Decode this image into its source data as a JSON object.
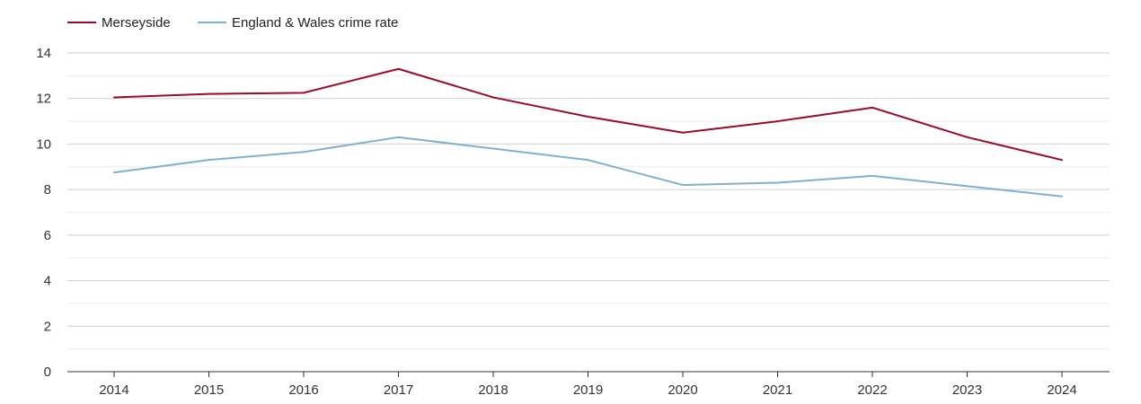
{
  "chart_data": {
    "type": "line",
    "title": "",
    "xlabel": "",
    "ylabel": "",
    "categories": [
      "2014",
      "2015",
      "2016",
      "2017",
      "2018",
      "2019",
      "2020",
      "2021",
      "2022",
      "2023",
      "2024"
    ],
    "ylim": [
      0,
      14
    ],
    "yticks": [
      0,
      2,
      4,
      6,
      8,
      10,
      12,
      14
    ],
    "grid": true,
    "legend_position": "top-left",
    "series": [
      {
        "name": "Merseyside",
        "color": "#9b0a2d",
        "values": [
          12.05,
          12.2,
          12.25,
          13.3,
          12.05,
          11.2,
          10.5,
          11.0,
          11.6,
          10.3,
          9.3
        ]
      },
      {
        "name": "England & Wales crime rate",
        "color": "#7eb0d1",
        "values": [
          8.75,
          9.3,
          9.65,
          10.3,
          9.8,
          9.3,
          8.2,
          8.3,
          8.6,
          8.15,
          7.7
        ]
      }
    ]
  }
}
